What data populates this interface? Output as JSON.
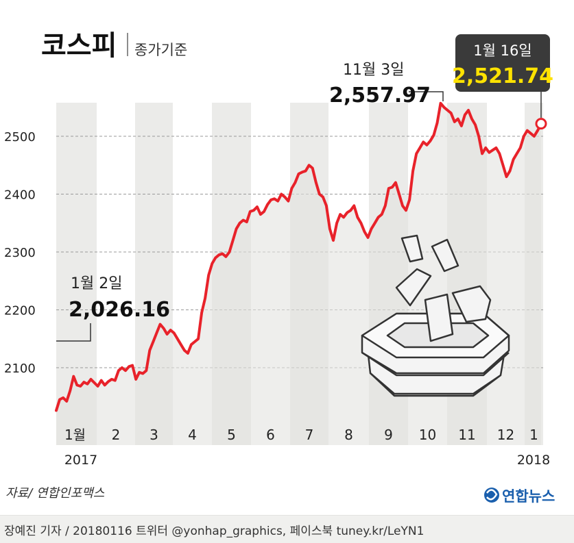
{
  "header": {
    "title": "코스피",
    "subtitle": "종가기준"
  },
  "source": "자료/ 연합인포맥스",
  "logo_text": "연합뉴스",
  "footer_credit": "장예진 기자 / 20180116 트위터 @yonhap_graphics, 페이스북 tuney.kr/LeYN1",
  "colors": {
    "line": "#e8222a",
    "band": "#ebebe9",
    "callout_bg": "#3a3a3a",
    "callout_value": "#ffe200",
    "text": "#222222"
  },
  "chart_data": {
    "type": "line",
    "title": "코스피",
    "subtitle": "종가기준",
    "ylim": [
      2015,
      2580
    ],
    "yticks": [
      2100,
      2200,
      2300,
      2400,
      2500
    ],
    "ytick_labels": [
      "2100",
      "2200",
      "2300",
      "2400",
      "2500"
    ],
    "months": [
      "1월",
      "2",
      "3",
      "4",
      "5",
      "6",
      "7",
      "8",
      "9",
      "10",
      "11",
      "12",
      "1"
    ],
    "year_labels": [
      "2017",
      "2018"
    ],
    "series": [
      {
        "values": [
          2026,
          2045,
          2048,
          2042,
          2060,
          2085,
          2070,
          2068,
          2075,
          2072,
          2080,
          2074,
          2068,
          2078,
          2070,
          2076,
          2080,
          2078,
          2095,
          2100,
          2095,
          2102,
          2104,
          2080,
          2092,
          2090,
          2095,
          2130,
          2145,
          2160,
          2175,
          2168,
          2158,
          2165,
          2160,
          2150,
          2140,
          2130,
          2125,
          2140,
          2145,
          2150,
          2195,
          2220,
          2260,
          2280,
          2290,
          2295,
          2297,
          2292,
          2300,
          2320,
          2340,
          2350,
          2355,
          2352,
          2370,
          2372,
          2378,
          2365,
          2370,
          2382,
          2390,
          2392,
          2388,
          2400,
          2395,
          2388,
          2410,
          2420,
          2435,
          2438,
          2440,
          2450,
          2445,
          2420,
          2400,
          2395,
          2380,
          2340,
          2320,
          2350,
          2365,
          2360,
          2368,
          2372,
          2380,
          2360,
          2350,
          2335,
          2325,
          2340,
          2350,
          2360,
          2365,
          2380,
          2410,
          2412,
          2420,
          2400,
          2380,
          2372,
          2390,
          2440,
          2470,
          2480,
          2490,
          2485,
          2492,
          2502,
          2523,
          2557,
          2550,
          2545,
          2540,
          2525,
          2530,
          2518,
          2537,
          2545,
          2530,
          2520,
          2500,
          2470,
          2480,
          2472,
          2476,
          2480,
          2470,
          2450,
          2430,
          2440,
          2460,
          2470,
          2480,
          2500,
          2510,
          2505,
          2500,
          2510,
          2521.74
        ]
      }
    ],
    "annotations": [
      {
        "date": "1월 2일",
        "value": "2,026.16"
      },
      {
        "date": "11월 3일",
        "value": "2,557.97"
      },
      {
        "date": "1월 16일",
        "value": "2,521.74"
      }
    ]
  }
}
